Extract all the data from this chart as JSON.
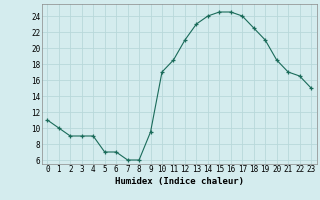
{
  "x": [
    0,
    1,
    2,
    3,
    4,
    5,
    6,
    7,
    8,
    9,
    10,
    11,
    12,
    13,
    14,
    15,
    16,
    17,
    18,
    19,
    20,
    21,
    22,
    23
  ],
  "y": [
    11,
    10,
    9,
    9,
    9,
    7,
    7,
    6,
    6,
    9.5,
    17,
    18.5,
    21,
    23,
    24,
    24.5,
    24.5,
    24,
    22.5,
    21,
    18.5,
    17,
    16.5,
    15
  ],
  "line_color": "#1a6b5a",
  "marker": "+",
  "xlabel": "Humidex (Indice chaleur)",
  "bg_color": "#d4ecee",
  "grid_color": "#b8d8da",
  "xlim": [
    -0.5,
    23.5
  ],
  "ylim": [
    5.5,
    25.5
  ],
  "yticks": [
    6,
    8,
    10,
    12,
    14,
    16,
    18,
    20,
    22,
    24
  ],
  "xticks": [
    0,
    1,
    2,
    3,
    4,
    5,
    6,
    7,
    8,
    9,
    10,
    11,
    12,
    13,
    14,
    15,
    16,
    17,
    18,
    19,
    20,
    21,
    22,
    23
  ],
  "xlabel_fontsize": 6.5,
  "tick_fontsize": 5.5
}
